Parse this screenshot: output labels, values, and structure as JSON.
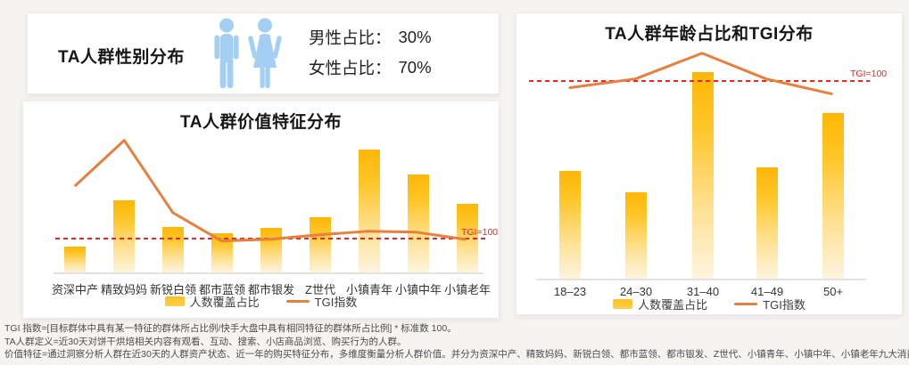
{
  "gender_panel": {
    "title": "TA人群性别分布",
    "male_label": "男性占比：",
    "male_value": "30%",
    "female_label": "女性占比：",
    "female_value": "70%"
  },
  "tgi_reference_label": "TGI=100",
  "footnotes": [
    "TGI 指数=[目标群体中具有某一特征的群体所占比例/快手大盘中具有相同特征的群体所占比例] * 标准数 100。",
    "TA人群定义=近30天对饼干烘焙相关内容有观看、互动、搜索、小店商品浏览、购买行为的人群。",
    "价值特征=通过洞察分析人群在近30天的人群资产状态、近一年的购买特征分布，多维度衡量分析人群价值。并分为资深中产、精致妈妈、新锐白领、都市蓝领、都市银发、Z世代、小镇青年、小镇中年、小镇老年九大消费人群。"
  ],
  "colors": {
    "icon_blue": "#a3cff2",
    "bar_yellow_top": "#ffb606",
    "line_orange": "#e87f3c",
    "dashed_red": "#f52222"
  },
  "chart_data": [
    {
      "type": "bar",
      "title": "TA人群价值特征分布",
      "categories": [
        "资深中产",
        "精致妈妈",
        "新锐白领",
        "都市蓝领",
        "都市银发",
        "Z世代",
        "小镇青年",
        "小镇中年",
        "小镇老年"
      ],
      "series": [
        {
          "name": "人数覆盖占比",
          "type": "bar",
          "unit": "relative height, max=100 (no y-axis ticks shown)",
          "values": [
            21,
            59,
            37,
            32,
            36,
            45,
            100,
            80,
            56
          ]
        },
        {
          "name": "TGI指数",
          "type": "line",
          "values": [
            159,
            210,
            128,
            96,
            98,
            103,
            107,
            106,
            98
          ]
        }
      ],
      "reference_line": {
        "label": "TGI=100",
        "value": 100
      },
      "legend_position": "bottom",
      "xlabel": "",
      "ylabel": "",
      "y_axis": "hidden",
      "grid": false
    },
    {
      "type": "bar",
      "title": "TA人群年龄占比和TGI分布",
      "categories": [
        "18–23",
        "24–30",
        "31–40",
        "41–49",
        "50+"
      ],
      "series": [
        {
          "name": "人数覆盖占比",
          "type": "bar",
          "unit": "relative height, max=100 (no y-axis ticks shown)",
          "values": [
            52,
            42,
            100,
            54,
            80
          ]
        },
        {
          "name": "TGI指数",
          "type": "line",
          "values": [
            92,
            102,
            131,
            102,
            85
          ]
        }
      ],
      "reference_line": {
        "label": "TGI=100",
        "value": 100
      },
      "legend_position": "bottom",
      "xlabel": "",
      "ylabel": "",
      "y_axis": "hidden",
      "grid": false
    }
  ]
}
